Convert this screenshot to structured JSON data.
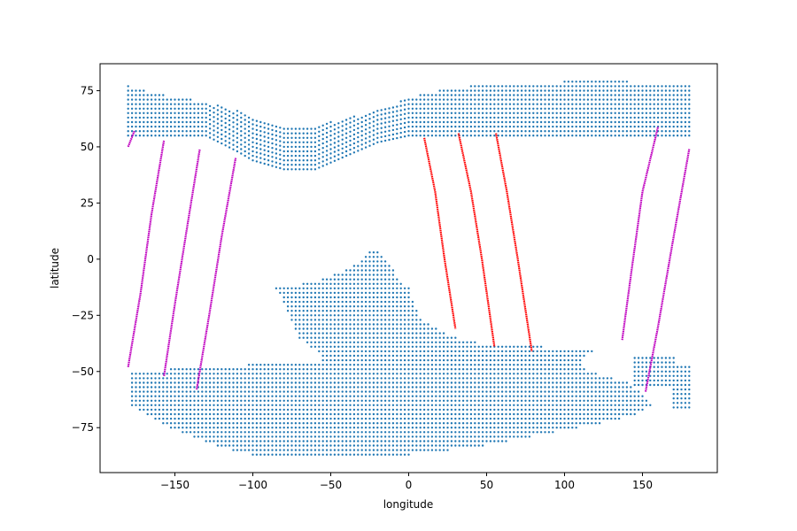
{
  "chart_data": {
    "type": "scatter",
    "title": "",
    "xlabel": "longitude",
    "ylabel": "latitude",
    "xlim": [
      -198,
      198
    ],
    "ylim": [
      -95,
      87
    ],
    "xticks": [
      -150,
      -100,
      -50,
      0,
      50,
      100,
      150
    ],
    "yticks": [
      -75,
      -50,
      -25,
      0,
      25,
      50,
      75
    ],
    "grid": false,
    "colors": {
      "grid_points": "#1f77b4",
      "red_tracks": "#ff0000",
      "magenta_tracks": "#bf00bf"
    },
    "grid_point_spacing": [
      2.5,
      2
    ],
    "grid_regions": {
      "northern_band": {
        "lon_range": [
          -180,
          180
        ],
        "lat_max": [
          [
            -180,
            77
          ],
          [
            -170,
            75
          ],
          [
            -150,
            72
          ],
          [
            -130,
            70
          ],
          [
            -110,
            66
          ],
          [
            -100,
            62
          ],
          [
            -80,
            59
          ],
          [
            -60,
            59
          ],
          [
            -40,
            63
          ],
          [
            -20,
            66
          ],
          [
            0,
            72
          ],
          [
            20,
            75
          ],
          [
            40,
            77
          ],
          [
            80,
            77
          ],
          [
            100,
            79
          ],
          [
            140,
            79
          ],
          [
            150,
            77
          ],
          [
            180,
            77
          ]
        ],
        "lat_min": [
          [
            -180,
            55
          ],
          [
            -130,
            55
          ],
          [
            -110,
            48
          ],
          [
            -100,
            44
          ],
          [
            -80,
            40
          ],
          [
            -60,
            40
          ],
          [
            -40,
            46
          ],
          [
            -20,
            52
          ],
          [
            0,
            55
          ],
          [
            180,
            55
          ]
        ]
      },
      "southern_region": {
        "lat_range": [
          -87,
          3
        ],
        "lon_bounds": [
          [
            3,
            -25,
            -20
          ],
          [
            -1,
            -30,
            -14
          ],
          [
            -5,
            -42,
            -10
          ],
          [
            -10,
            -60,
            -5
          ],
          [
            -13,
            -85,
            0
          ],
          [
            -20,
            -80,
            3
          ],
          [
            -28,
            -75,
            10
          ],
          [
            -35,
            -70,
            30
          ],
          [
            -38,
            -65,
            50
          ],
          [
            -40,
            -60,
            120
          ],
          [
            -45,
            -55,
            110
          ],
          [
            -50,
            -178,
            115
          ],
          [
            -55,
            -178,
            140
          ],
          [
            -60,
            -178,
            150
          ],
          [
            -65,
            -178,
            155
          ],
          [
            -68,
            -170,
            150
          ],
          [
            -72,
            -160,
            130
          ],
          [
            -76,
            -150,
            100
          ],
          [
            -80,
            -135,
            70
          ],
          [
            -84,
            -120,
            40
          ],
          [
            -87,
            -100,
            0
          ]
        ],
        "east_fragments": [
          [
            145,
            170,
            -44,
            -56
          ],
          [
            170,
            180,
            -48,
            -66
          ]
        ]
      }
    },
    "series": [
      {
        "color_key": "magenta_tracks",
        "tracks": [
          [
            [
              -180,
              50
            ],
            [
              -176,
              57
            ]
          ],
          [
            [
              -180,
              -48
            ],
            [
              -172,
              -15
            ],
            [
              -165,
              20
            ],
            [
              -157,
              53
            ]
          ],
          [
            [
              -157,
              -52
            ],
            [
              -150,
              -20
            ],
            [
              -142,
              15
            ],
            [
              -134,
              49
            ]
          ],
          [
            [
              -136,
              -58
            ],
            [
              -128,
              -25
            ],
            [
              -120,
              10
            ],
            [
              -111,
              45
            ]
          ],
          [
            [
              137,
              -36
            ],
            [
              143,
              -5
            ],
            [
              150,
              30
            ],
            [
              160,
              59
            ]
          ],
          [
            [
              152,
              -59
            ],
            [
              160,
              -30
            ],
            [
              170,
              10
            ],
            [
              180,
              49
            ]
          ]
        ]
      },
      {
        "color_key": "red_tracks",
        "tracks": [
          [
            [
              10,
              54
            ],
            [
              17,
              30
            ],
            [
              23,
              0
            ],
            [
              30,
              -31
            ]
          ],
          [
            [
              32,
              56
            ],
            [
              40,
              30
            ],
            [
              47,
              0
            ],
            [
              55,
              -39
            ]
          ],
          [
            [
              56,
              56
            ],
            [
              63,
              30
            ],
            [
              70,
              0
            ],
            [
              79,
              -41
            ]
          ]
        ]
      }
    ]
  }
}
